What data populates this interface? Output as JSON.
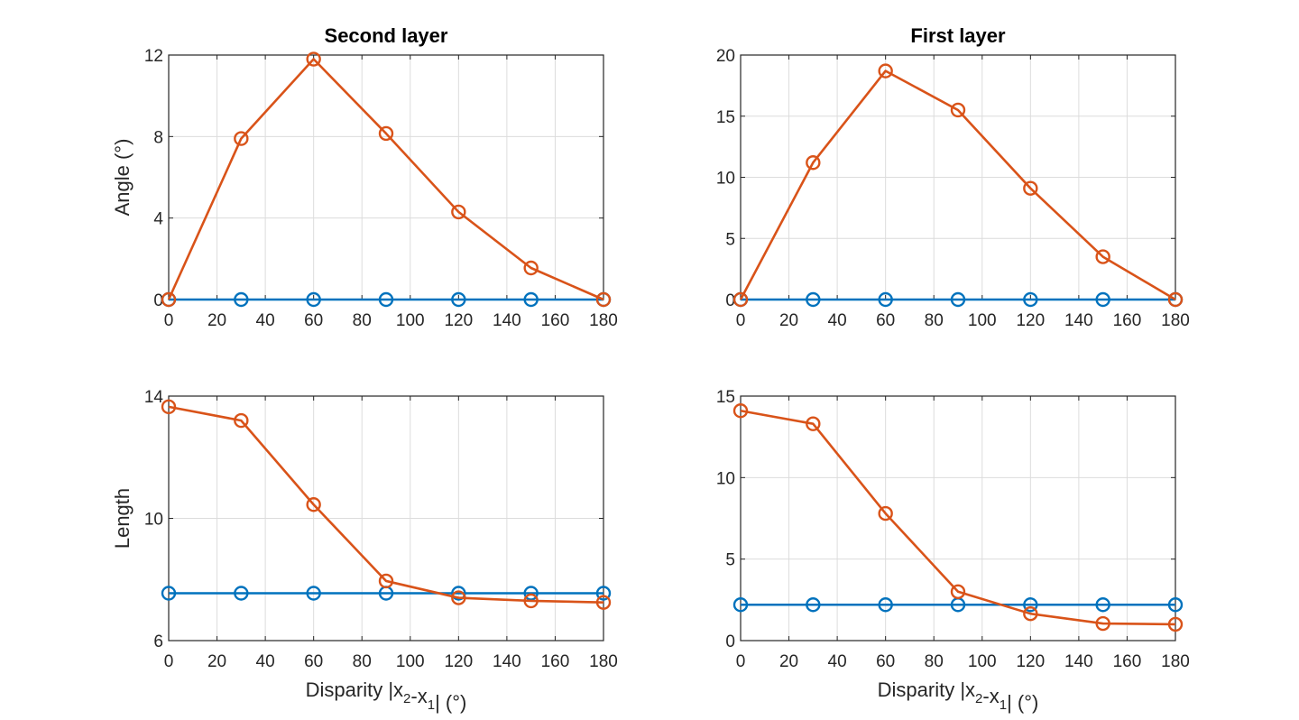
{
  "colors": {
    "series_blue": "#0072BD",
    "series_orange": "#D95319",
    "axis": "#262626",
    "grid": "#dcdcdc"
  },
  "chart_data": [
    {
      "type": "line",
      "title": "Second layer",
      "xlabel": "",
      "ylabel": "Angle (°)",
      "xlim": [
        0,
        180
      ],
      "ylim": [
        0,
        12
      ],
      "xticks": [
        0,
        20,
        40,
        60,
        80,
        100,
        120,
        140,
        160,
        180
      ],
      "yticks": [
        0,
        4,
        8,
        12
      ],
      "grid": true,
      "x": [
        0,
        30,
        60,
        90,
        120,
        150,
        180
      ],
      "series": [
        {
          "values": [
            0,
            0,
            0,
            0,
            0,
            0,
            0
          ],
          "color": "#0072BD",
          "marker": "circle"
        },
        {
          "values": [
            0,
            7.9,
            11.8,
            8.15,
            4.3,
            1.55,
            0
          ],
          "color": "#D95319",
          "marker": "circle"
        }
      ]
    },
    {
      "type": "line",
      "title": "First layer",
      "xlabel": "",
      "ylabel": "",
      "xlim": [
        0,
        180
      ],
      "ylim": [
        0,
        20
      ],
      "xticks": [
        0,
        20,
        40,
        60,
        80,
        100,
        120,
        140,
        160,
        180
      ],
      "yticks": [
        0,
        5,
        10,
        15,
        20
      ],
      "grid": true,
      "x": [
        0,
        30,
        60,
        90,
        120,
        150,
        180
      ],
      "series": [
        {
          "values": [
            0,
            0,
            0,
            0,
            0,
            0,
            0
          ],
          "color": "#0072BD",
          "marker": "circle"
        },
        {
          "values": [
            0,
            11.2,
            18.7,
            15.5,
            9.1,
            3.5,
            0
          ],
          "color": "#D95319",
          "marker": "circle"
        }
      ]
    },
    {
      "type": "line",
      "title": "",
      "xlabel": "Disparity |x2-x1| (°)",
      "ylabel": "Length",
      "xlim": [
        0,
        180
      ],
      "ylim": [
        6,
        14
      ],
      "xticks": [
        0,
        20,
        40,
        60,
        80,
        100,
        120,
        140,
        160,
        180
      ],
      "yticks": [
        6,
        10,
        14
      ],
      "grid": true,
      "x": [
        0,
        30,
        60,
        90,
        120,
        150,
        180
      ],
      "series": [
        {
          "values": [
            7.55,
            7.55,
            7.55,
            7.55,
            7.55,
            7.55,
            7.55
          ],
          "color": "#0072BD",
          "marker": "circle"
        },
        {
          "values": [
            13.65,
            13.2,
            10.45,
            7.95,
            7.4,
            7.3,
            7.25
          ],
          "color": "#D95319",
          "marker": "circle"
        }
      ]
    },
    {
      "type": "line",
      "title": "",
      "xlabel": "Disparity |x2-x1| (°)",
      "ylabel": "",
      "xlim": [
        0,
        180
      ],
      "ylim": [
        0,
        15
      ],
      "xticks": [
        0,
        20,
        40,
        60,
        80,
        100,
        120,
        140,
        160,
        180
      ],
      "yticks": [
        0,
        5,
        10,
        15
      ],
      "grid": true,
      "x": [
        0,
        30,
        60,
        90,
        120,
        150,
        180
      ],
      "series": [
        {
          "values": [
            2.2,
            2.2,
            2.2,
            2.2,
            2.2,
            2.2,
            2.2
          ],
          "color": "#0072BD",
          "marker": "circle"
        },
        {
          "values": [
            14.1,
            13.3,
            7.8,
            3.0,
            1.65,
            1.05,
            1.0
          ],
          "color": "#D95319",
          "marker": "circle"
        }
      ]
    }
  ]
}
